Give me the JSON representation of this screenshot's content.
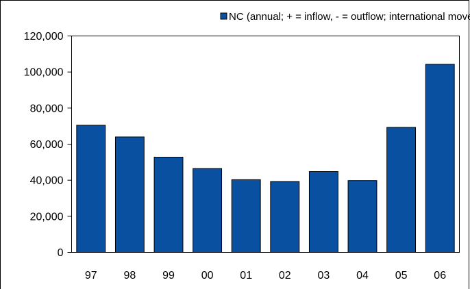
{
  "chart_data": {
    "type": "bar",
    "categories": [
      "97",
      "98",
      "99",
      "00",
      "01",
      "02",
      "03",
      "04",
      "05",
      "06"
    ],
    "series": [
      {
        "name": "NC (annual; + = inflow, - = outflow; international moves excluded)",
        "values": [
          70500,
          64000,
          52800,
          46500,
          40300,
          39300,
          44800,
          39800,
          69300,
          104300
        ],
        "color": "#0a50a0"
      }
    ],
    "y_ticks": [
      "0",
      "20,000",
      "40,000",
      "60,000",
      "80,000",
      "100,000",
      "120,000"
    ],
    "ylim": [
      0,
      120000
    ],
    "y_tick_step": 20000,
    "grid": false,
    "legend_position": "top-right",
    "title": "",
    "xlabel": "",
    "ylabel": ""
  }
}
